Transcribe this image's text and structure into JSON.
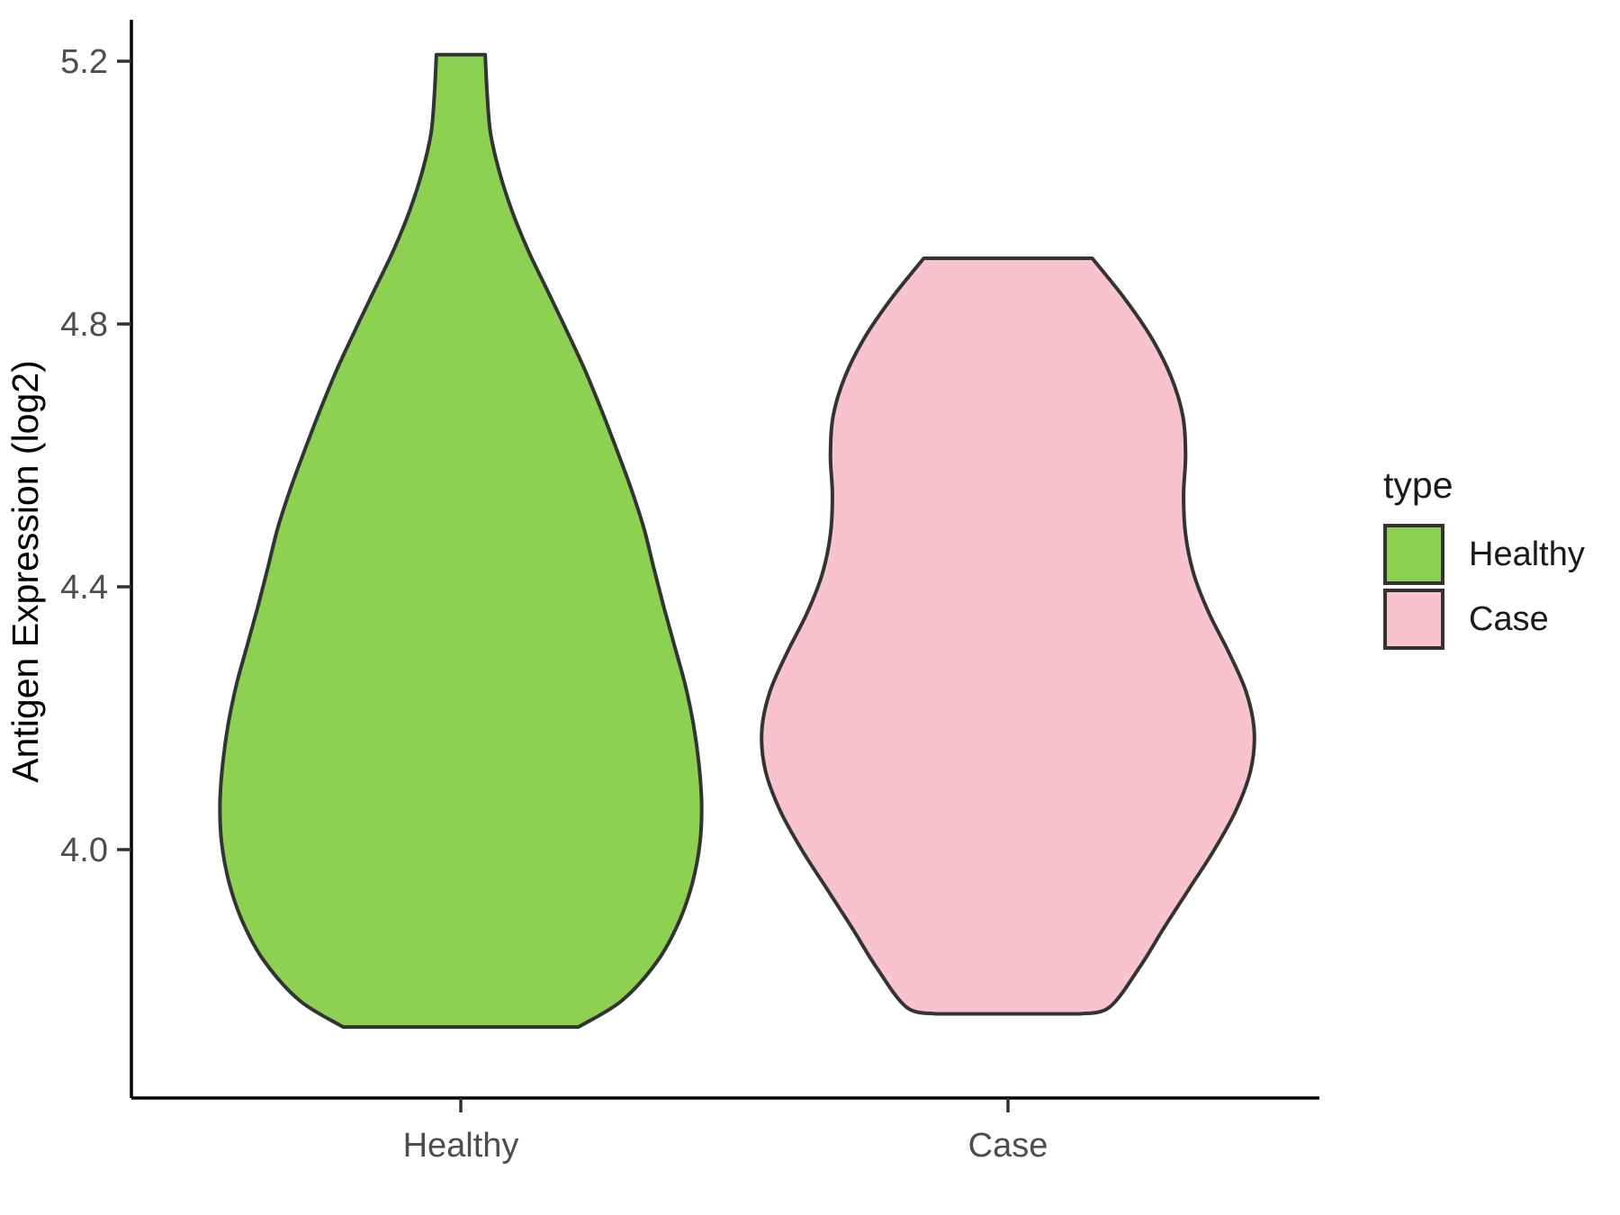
{
  "figure": {
    "background": "#ffffff"
  },
  "axes": {
    "y_title": "Antigen Expression (log2)",
    "y_tick_labels": [
      "5.2",
      "4.8",
      "4.4",
      "4.0"
    ],
    "y_tick_values": [
      5.2,
      4.8,
      4.4,
      4.0
    ],
    "x_categories": [
      "Healthy",
      "Case"
    ]
  },
  "legend": {
    "title": "type",
    "entries": [
      {
        "label": "Healthy",
        "color": "#8cd152"
      },
      {
        "label": "Case",
        "color": "#f8c3cf"
      }
    ]
  },
  "chart_data": {
    "type": "violin",
    "title": "",
    "xlabel": "",
    "ylabel": "Antigen Expression (log2)",
    "categories": [
      "Healthy",
      "Case"
    ],
    "yticks": [
      4.0,
      4.4,
      4.8,
      5.2
    ],
    "ylim": [
      3.6,
      5.3
    ],
    "legend_title": "type",
    "legend_position": "right",
    "grid": false,
    "violin_width": 0.9,
    "outline_color": "#333333",
    "axis_line_color": "#000000",
    "tick_color": "#333333",
    "axis_text_color": "#4d4d4d",
    "series": [
      {
        "name": "Healthy",
        "fill": "#8cd152",
        "value_range": [
          3.73,
          5.21
        ],
        "peak_value": 4.08,
        "profile": [
          [
            5.21,
            0.099
          ],
          [
            5.15,
            0.107
          ],
          [
            5.09,
            0.121
          ],
          [
            5.03,
            0.158
          ],
          [
            4.97,
            0.21
          ],
          [
            4.91,
            0.276
          ],
          [
            4.85,
            0.353
          ],
          [
            4.79,
            0.43
          ],
          [
            4.73,
            0.504
          ],
          [
            4.67,
            0.57
          ],
          [
            4.61,
            0.632
          ],
          [
            4.55,
            0.691
          ],
          [
            4.49,
            0.743
          ],
          [
            4.43,
            0.783
          ],
          [
            4.37,
            0.824
          ],
          [
            4.31,
            0.868
          ],
          [
            4.25,
            0.912
          ],
          [
            4.19,
            0.945
          ],
          [
            4.13,
            0.967
          ],
          [
            4.07,
            0.978
          ],
          [
            4.01,
            0.971
          ],
          [
            3.95,
            0.941
          ],
          [
            3.89,
            0.886
          ],
          [
            3.83,
            0.798
          ],
          [
            3.77,
            0.654
          ],
          [
            3.73,
            0.478
          ]
        ]
      },
      {
        "name": "Case",
        "fill": "#f8c3cf",
        "value_range": [
          3.75,
          4.9
        ],
        "peak_value": 4.18,
        "profile": [
          [
            4.9,
            0.342
          ],
          [
            4.84,
            0.471
          ],
          [
            4.78,
            0.581
          ],
          [
            4.72,
            0.662
          ],
          [
            4.66,
            0.71
          ],
          [
            4.6,
            0.721
          ],
          [
            4.54,
            0.713
          ],
          [
            4.48,
            0.721
          ],
          [
            4.42,
            0.754
          ],
          [
            4.36,
            0.816
          ],
          [
            4.3,
            0.897
          ],
          [
            4.24,
            0.967
          ],
          [
            4.18,
            1.0
          ],
          [
            4.12,
            0.985
          ],
          [
            4.06,
            0.926
          ],
          [
            4.0,
            0.838
          ],
          [
            3.94,
            0.735
          ],
          [
            3.88,
            0.632
          ],
          [
            3.82,
            0.533
          ],
          [
            3.76,
            0.412
          ],
          [
            3.75,
            0.294
          ]
        ]
      }
    ]
  }
}
